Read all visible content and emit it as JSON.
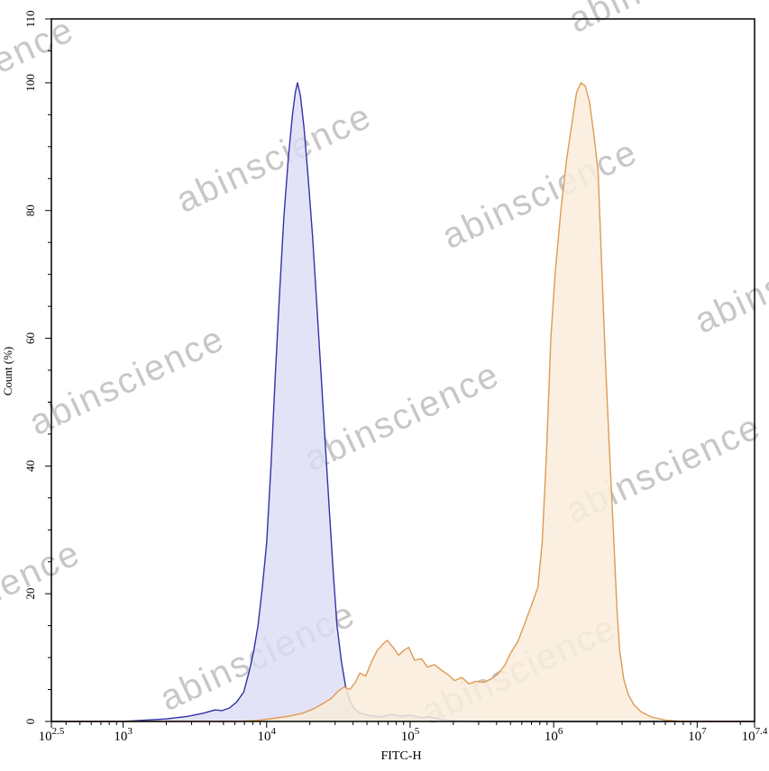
{
  "watermark": {
    "text": "abinscience",
    "color": "#9a9a9a",
    "opacity": 0.55,
    "angle_deg": -25,
    "font_size": 40,
    "positions": [
      [
        -25,
        82
      ],
      [
        740,
        -22
      ],
      [
        305,
        178
      ],
      [
        600,
        218
      ],
      [
        880,
        312
      ],
      [
        142,
        425
      ],
      [
        447,
        465
      ],
      [
        737,
        523
      ],
      [
        -18,
        663
      ],
      [
        287,
        731
      ],
      [
        577,
        746
      ]
    ]
  },
  "chart_data": {
    "type": "area",
    "title": "",
    "xlabel": "FITC-H",
    "ylabel": "Count (%)",
    "x_scale": "log10",
    "x_range": [
      2.5,
      7.4
    ],
    "y_range": [
      0,
      110
    ],
    "grid": false,
    "legend": "none",
    "frame_color": "#000000",
    "x_major_ticks": [
      {
        "base": "10",
        "exp": "2.5",
        "log": 2.5
      },
      {
        "base": "10",
        "exp": "3",
        "log": 3
      },
      {
        "base": "10",
        "exp": "4",
        "log": 4
      },
      {
        "base": "10",
        "exp": "5",
        "log": 5
      },
      {
        "base": "10",
        "exp": "6",
        "log": 6
      },
      {
        "base": "10",
        "exp": "7",
        "log": 7
      },
      {
        "base": "10",
        "exp": "7.4",
        "log": 7.4
      }
    ],
    "y_major_ticks": [
      0,
      20,
      40,
      60,
      80,
      100,
      110
    ],
    "y_minor_step": 5,
    "series": [
      {
        "name": "blue-histogram-curve",
        "stroke": "#3232aa",
        "fill": "#dcdcf5",
        "fill_opacity": 0.8,
        "peak_x_log": 4.215,
        "peak_count": 100,
        "points": [
          [
            2.5,
            0
          ],
          [
            3.0,
            0
          ],
          [
            3.15,
            0.2
          ],
          [
            3.3,
            0.4
          ],
          [
            3.45,
            0.8
          ],
          [
            3.56,
            1.3
          ],
          [
            3.64,
            1.8
          ],
          [
            3.69,
            1.7
          ],
          [
            3.74,
            2.1
          ],
          [
            3.79,
            3.0
          ],
          [
            3.84,
            4.6
          ],
          [
            3.88,
            8
          ],
          [
            3.91,
            11
          ],
          [
            3.94,
            15
          ],
          [
            3.97,
            21
          ],
          [
            4.0,
            28
          ],
          [
            4.03,
            40
          ],
          [
            4.06,
            54
          ],
          [
            4.09,
            67
          ],
          [
            4.12,
            79
          ],
          [
            4.15,
            88
          ],
          [
            4.18,
            95
          ],
          [
            4.2,
            98.5
          ],
          [
            4.215,
            100
          ],
          [
            4.235,
            98
          ],
          [
            4.26,
            93
          ],
          [
            4.29,
            85
          ],
          [
            4.32,
            76
          ],
          [
            4.35,
            65
          ],
          [
            4.38,
            54
          ],
          [
            4.41,
            43
          ],
          [
            4.44,
            32
          ],
          [
            4.465,
            23
          ],
          [
            4.49,
            15
          ],
          [
            4.52,
            9.5
          ],
          [
            4.55,
            5.5
          ],
          [
            4.58,
            3.2
          ],
          [
            4.61,
            2.0
          ],
          [
            4.65,
            1.3
          ],
          [
            4.72,
            0.9
          ],
          [
            4.8,
            0.7
          ],
          [
            4.87,
            1.1
          ],
          [
            4.93,
            0.8
          ],
          [
            5.0,
            1.0
          ],
          [
            5.07,
            0.6
          ],
          [
            5.14,
            0.7
          ],
          [
            5.22,
            0.3
          ],
          [
            5.32,
            0.1
          ],
          [
            5.5,
            0
          ],
          [
            7.4,
            0
          ]
        ]
      },
      {
        "name": "orange-histogram-curve",
        "stroke": "#df9a55",
        "fill": "#f9ecda",
        "fill_opacity": 0.85,
        "peak_x_log": 6.19,
        "peak_count": 100,
        "points": [
          [
            2.5,
            0
          ],
          [
            3.8,
            0
          ],
          [
            3.95,
            0.2
          ],
          [
            4.05,
            0.5
          ],
          [
            4.15,
            0.8
          ],
          [
            4.25,
            1.3
          ],
          [
            4.33,
            2.0
          ],
          [
            4.4,
            2.9
          ],
          [
            4.45,
            3.6
          ],
          [
            4.5,
            4.8
          ],
          [
            4.54,
            5.4
          ],
          [
            4.58,
            5.0
          ],
          [
            4.62,
            6.2
          ],
          [
            4.65,
            7.6
          ],
          [
            4.69,
            7.1
          ],
          [
            4.73,
            9.3
          ],
          [
            4.77,
            11.1
          ],
          [
            4.81,
            12.1
          ],
          [
            4.84,
            12.7
          ],
          [
            4.88,
            11.6
          ],
          [
            4.92,
            10.4
          ],
          [
            4.96,
            11.2
          ],
          [
            4.99,
            11.6
          ],
          [
            5.03,
            9.6
          ],
          [
            5.08,
            9.8
          ],
          [
            5.12,
            8.5
          ],
          [
            5.17,
            8.9
          ],
          [
            5.22,
            8.0
          ],
          [
            5.26,
            7.4
          ],
          [
            5.31,
            6.4
          ],
          [
            5.36,
            6.9
          ],
          [
            5.41,
            5.9
          ],
          [
            5.46,
            6.3
          ],
          [
            5.51,
            6.1
          ],
          [
            5.56,
            6.6
          ],
          [
            5.61,
            7.4
          ],
          [
            5.66,
            8.8
          ],
          [
            5.7,
            10.7
          ],
          [
            5.75,
            12.5
          ],
          [
            5.8,
            15.4
          ],
          [
            5.85,
            18.5
          ],
          [
            5.89,
            21
          ],
          [
            5.92,
            28
          ],
          [
            5.95,
            42
          ],
          [
            5.98,
            60
          ],
          [
            6.01,
            70
          ],
          [
            6.05,
            80
          ],
          [
            6.09,
            88
          ],
          [
            6.13,
            94
          ],
          [
            6.16,
            98.5
          ],
          [
            6.19,
            100
          ],
          [
            6.22,
            99.5
          ],
          [
            6.25,
            97
          ],
          [
            6.28,
            92
          ],
          [
            6.31,
            86
          ],
          [
            6.33,
            74
          ],
          [
            6.36,
            57
          ],
          [
            6.39,
            42
          ],
          [
            6.42,
            28
          ],
          [
            6.44,
            18
          ],
          [
            6.46,
            11
          ],
          [
            6.49,
            6.5
          ],
          [
            6.52,
            4.2
          ],
          [
            6.56,
            2.6
          ],
          [
            6.61,
            1.5
          ],
          [
            6.68,
            0.7
          ],
          [
            6.78,
            0.2
          ],
          [
            6.9,
            0
          ],
          [
            7.4,
            0
          ]
        ]
      }
    ]
  }
}
